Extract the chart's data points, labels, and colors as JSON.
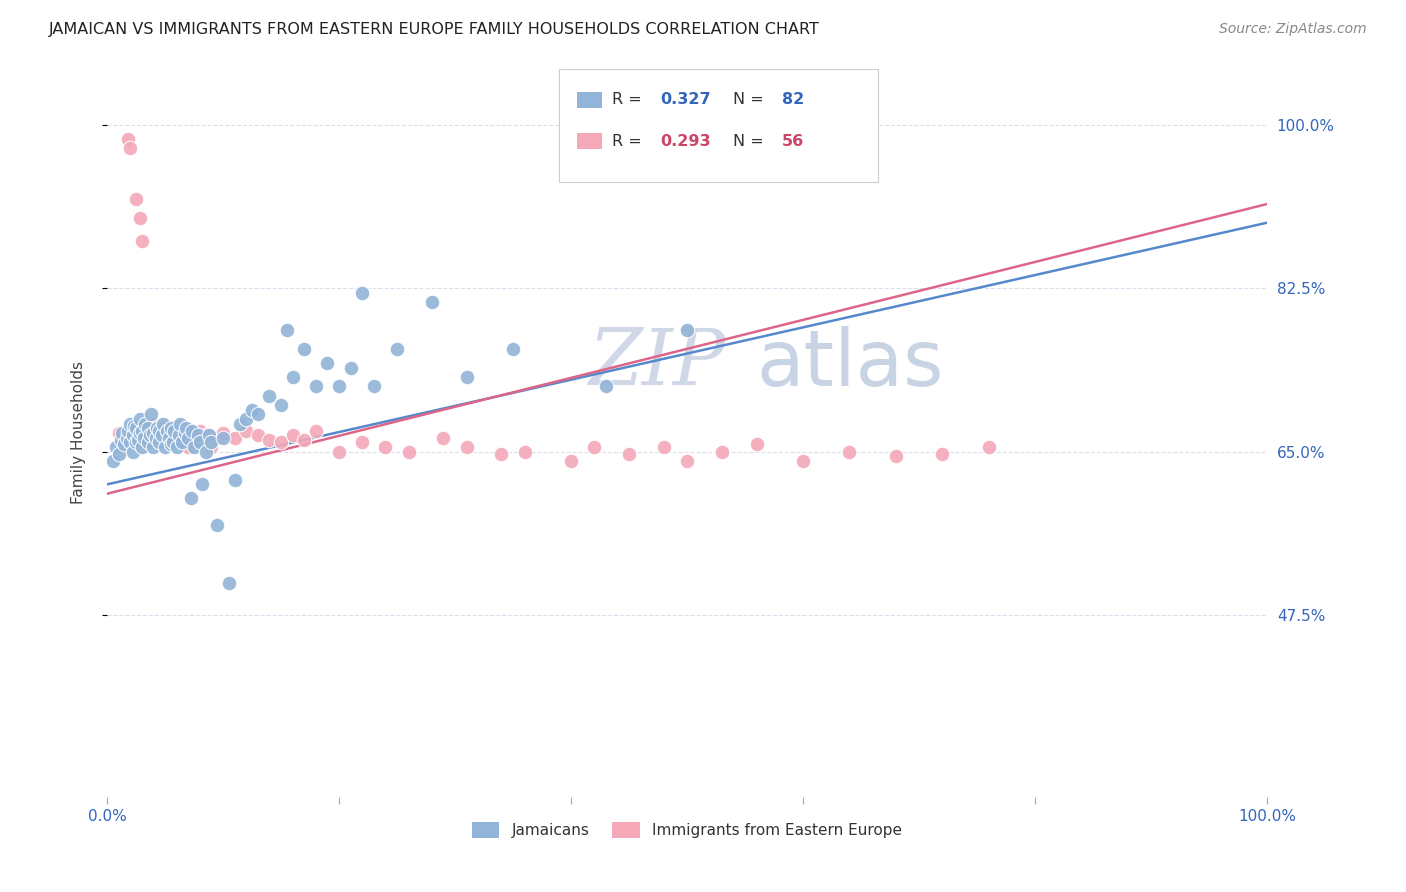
{
  "title": "JAMAICAN VS IMMIGRANTS FROM EASTERN EUROPE FAMILY HOUSEHOLDS CORRELATION CHART",
  "source": "Source: ZipAtlas.com",
  "ylabel": "Family Households",
  "legend_labels": [
    "Jamaicans",
    "Immigrants from Eastern Europe"
  ],
  "r_blue": "0.327",
  "n_blue": "82",
  "r_pink": "0.293",
  "n_pink": "56",
  "color_blue": "#91B4D8",
  "color_pink": "#F4A8B8",
  "color_blue_text": "#3366BB",
  "color_pink_text": "#CC4466",
  "color_trendline_blue": "#5588CC",
  "color_trendline_pink": "#DD6688",
  "watermark_zip_color": "#D0D8E8",
  "watermark_atlas_color": "#C8D4E4",
  "background_color": "#FFFFFF",
  "grid_color": "#DDDDEE",
  "xlim": [
    0.0,
    1.0
  ],
  "ylim": [
    0.28,
    1.06
  ],
  "ytick_vals": [
    1.0,
    0.825,
    0.65,
    0.475
  ],
  "ytick_labels": [
    "100.0%",
    "82.5%",
    "65.0%",
    "47.5%"
  ],
  "blue_x": [
    0.005,
    0.008,
    0.01,
    0.012,
    0.013,
    0.015,
    0.017,
    0.018,
    0.02,
    0.02,
    0.022,
    0.022,
    0.023,
    0.025,
    0.025,
    0.027,
    0.028,
    0.028,
    0.03,
    0.03,
    0.032,
    0.033,
    0.035,
    0.035,
    0.037,
    0.038,
    0.04,
    0.04,
    0.042,
    0.043,
    0.045,
    0.045,
    0.047,
    0.048,
    0.05,
    0.052,
    0.053,
    0.055,
    0.055,
    0.057,
    0.058,
    0.06,
    0.062,
    0.063,
    0.065,
    0.067,
    0.068,
    0.07,
    0.072,
    0.073,
    0.075,
    0.078,
    0.08,
    0.082,
    0.085,
    0.088,
    0.09,
    0.095,
    0.1,
    0.105,
    0.11,
    0.115,
    0.12,
    0.125,
    0.13,
    0.14,
    0.15,
    0.155,
    0.16,
    0.17,
    0.18,
    0.19,
    0.2,
    0.21,
    0.22,
    0.23,
    0.25,
    0.28,
    0.31,
    0.35,
    0.43,
    0.5
  ],
  "blue_y": [
    0.64,
    0.655,
    0.648,
    0.662,
    0.67,
    0.658,
    0.665,
    0.672,
    0.66,
    0.68,
    0.65,
    0.668,
    0.678,
    0.66,
    0.675,
    0.662,
    0.67,
    0.685,
    0.655,
    0.672,
    0.665,
    0.68,
    0.66,
    0.675,
    0.668,
    0.69,
    0.655,
    0.67,
    0.665,
    0.675,
    0.66,
    0.672,
    0.668,
    0.68,
    0.655,
    0.672,
    0.665,
    0.658,
    0.675,
    0.66,
    0.672,
    0.655,
    0.668,
    0.68,
    0.66,
    0.67,
    0.675,
    0.665,
    0.6,
    0.672,
    0.655,
    0.668,
    0.66,
    0.615,
    0.65,
    0.668,
    0.66,
    0.572,
    0.665,
    0.51,
    0.62,
    0.68,
    0.685,
    0.695,
    0.69,
    0.71,
    0.7,
    0.78,
    0.73,
    0.76,
    0.72,
    0.745,
    0.72,
    0.74,
    0.82,
    0.72,
    0.76,
    0.81,
    0.73,
    0.76,
    0.72,
    0.78
  ],
  "pink_x": [
    0.01,
    0.018,
    0.02,
    0.025,
    0.028,
    0.03,
    0.033,
    0.035,
    0.038,
    0.04,
    0.042,
    0.045,
    0.048,
    0.05,
    0.053,
    0.055,
    0.058,
    0.06,
    0.063,
    0.065,
    0.068,
    0.07,
    0.075,
    0.08,
    0.085,
    0.09,
    0.095,
    0.1,
    0.11,
    0.12,
    0.13,
    0.14,
    0.15,
    0.16,
    0.17,
    0.18,
    0.2,
    0.22,
    0.24,
    0.26,
    0.29,
    0.31,
    0.34,
    0.36,
    0.4,
    0.42,
    0.45,
    0.48,
    0.5,
    0.53,
    0.56,
    0.6,
    0.64,
    0.68,
    0.72,
    0.76
  ],
  "pink_y": [
    0.67,
    0.985,
    0.975,
    0.92,
    0.9,
    0.875,
    0.66,
    0.67,
    0.665,
    0.68,
    0.67,
    0.665,
    0.675,
    0.66,
    0.672,
    0.668,
    0.665,
    0.678,
    0.66,
    0.672,
    0.668,
    0.655,
    0.66,
    0.672,
    0.668,
    0.655,
    0.665,
    0.67,
    0.665,
    0.672,
    0.668,
    0.662,
    0.66,
    0.668,
    0.662,
    0.672,
    0.65,
    0.66,
    0.655,
    0.65,
    0.665,
    0.655,
    0.648,
    0.65,
    0.64,
    0.655,
    0.648,
    0.655,
    0.64,
    0.65,
    0.658,
    0.64,
    0.65,
    0.645,
    0.648,
    0.655
  ]
}
